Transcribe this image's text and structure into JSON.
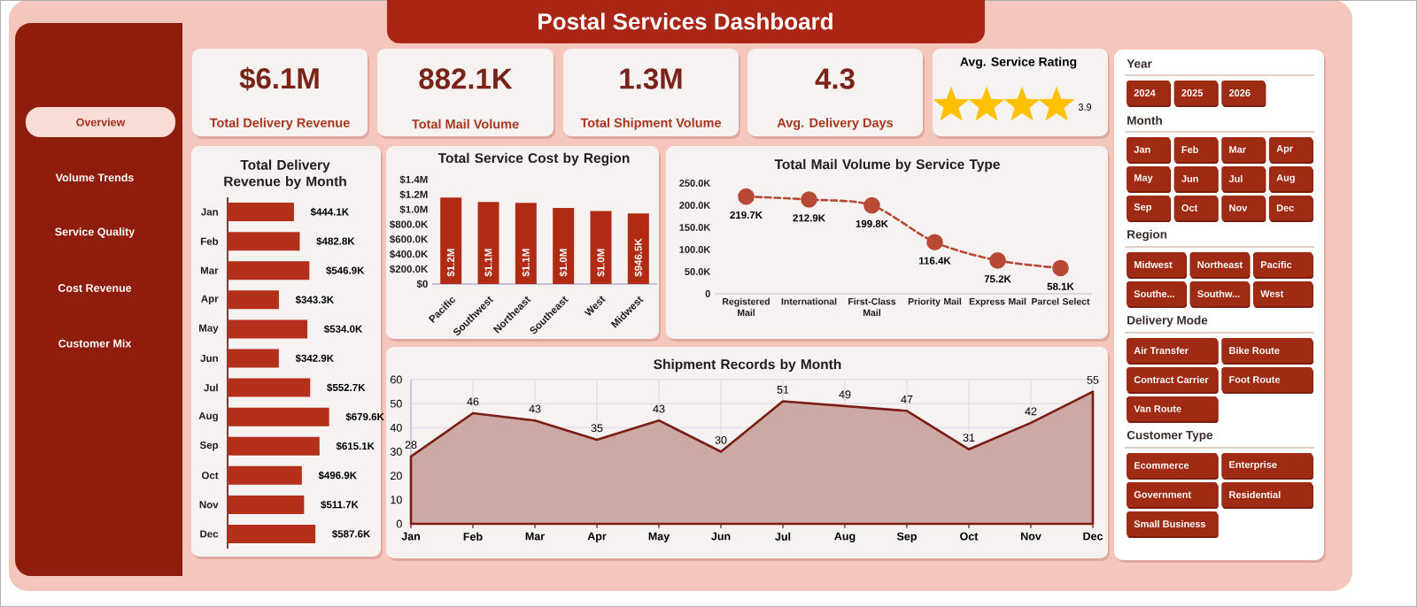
{
  "chart_data": [
    {
      "type": "other",
      "title": "Postal Services Dashboard",
      "annotations": [
        "Overview",
        "Volume Trends",
        "Service Quality",
        "Cost Revenue",
        "Customer Mix"
      ]
    },
    {
      "type": "other",
      "title": "Total Delivery Revenue",
      "annotations": [
        "$6.1M"
      ]
    },
    {
      "type": "other",
      "title": "Total Mail Volume",
      "annotations": [
        "882.1K"
      ]
    },
    {
      "type": "other",
      "title": "Total Shipment Volume",
      "annotations": [
        "1.3M"
      ]
    },
    {
      "type": "other",
      "title": "Avg. Delivery Days",
      "annotations": [
        "4.3"
      ]
    },
    {
      "type": "other",
      "title": "Avg. Service Rating",
      "annotations": [
        "3.9"
      ]
    },
    {
      "type": "bar",
      "orientation": "horizontal",
      "title": "Total Delivery Revenue by Month",
      "categories": [
        "Jan",
        "Feb",
        "Mar",
        "Apr",
        "May",
        "Jun",
        "Jul",
        "Aug",
        "Sep",
        "Oct",
        "Nov",
        "Dec"
      ],
      "values": [
        444.1,
        482.8,
        546.9,
        343.3,
        534.0,
        342.9,
        552.7,
        679.6,
        615.1,
        496.9,
        511.7,
        587.6
      ],
      "value_labels": [
        "$444.1K",
        "$482.8K",
        "$546.9K",
        "$343.3K",
        "$534.0K",
        "$342.9K",
        "$552.7K",
        "$679.6K",
        "$615.1K",
        "$496.9K",
        "$511.7K",
        "$587.6K"
      ],
      "color": "#b3301a"
    },
    {
      "type": "bar",
      "title": "Total Service Cost by Region",
      "categories": [
        "Pacific",
        "Southwest",
        "Northeast",
        "Southeast",
        "West",
        "Midwest"
      ],
      "values": [
        1160000,
        1100000,
        1090000,
        1020000,
        980000,
        946500
      ],
      "value_labels": [
        "$1.2M",
        "$1.1M",
        "$1.1M",
        "$1.0M",
        "$1.0M",
        "$946.5K"
      ],
      "color": "#b02a14",
      "ylim": [
        0,
        1400000
      ],
      "yticks": [
        {
          "value": 0,
          "label": "$0"
        },
        {
          "value": 200000,
          "label": "$200.0K"
        },
        {
          "value": 400000,
          "label": "$400.0K"
        },
        {
          "value": 600000,
          "label": "$600.0K"
        },
        {
          "value": 800000,
          "label": "$800.0K"
        },
        {
          "value": 1000000,
          "label": "$1.0M"
        },
        {
          "value": 1200000,
          "label": "$1.2M"
        },
        {
          "value": 1400000,
          "label": "$1.4M"
        }
      ]
    },
    {
      "type": "line",
      "title": "Total Mail Volume by Service Type",
      "categories": [
        "Registered Mail",
        "International",
        "First-Class Mail",
        "Priority Mail",
        "Express Mail",
        "Parcel Select"
      ],
      "values": [
        219700,
        212900,
        199800,
        116400,
        75200,
        58100
      ],
      "value_labels": [
        "219.7K",
        "212.9K",
        "199.8K",
        "116.4K",
        "75.2K",
        "58.1K"
      ],
      "color": "#b84a35",
      "line_style": "dashed",
      "marker": "circle",
      "ylim": [
        0,
        250000
      ],
      "yticks": [
        0,
        {
          "value": 50000,
          "label": "50.0K"
        },
        {
          "value": 100000,
          "label": "100.0K"
        },
        {
          "value": 150000,
          "label": "150.0K"
        },
        {
          "value": 200000,
          "label": "200.0K"
        },
        {
          "value": 250000,
          "label": "250.0K"
        }
      ]
    },
    {
      "type": "area",
      "title": "Shipment Records by Month",
      "categories": [
        "Jan",
        "Feb",
        "Mar",
        "Apr",
        "May",
        "Jun",
        "Jul",
        "Aug",
        "Sep",
        "Oct",
        "Nov",
        "Dec"
      ],
      "values": [
        28,
        46,
        43,
        35,
        43,
        30,
        51,
        49,
        47,
        31,
        42,
        55
      ],
      "color": "#7b1d12",
      "ylim": [
        0,
        60
      ],
      "yticks": [
        0,
        10,
        20,
        30,
        40,
        50,
        60
      ],
      "grid": true,
      "data_labels": true
    },
    {
      "type": "other",
      "title": "Year",
      "annotations": [
        "2024",
        "2025",
        "2026"
      ]
    },
    {
      "type": "other",
      "title": "Month",
      "annotations": [
        "Jan",
        "Feb",
        "Mar",
        "Apr",
        "May",
        "Jun",
        "Jul",
        "Aug",
        "Sep",
        "Oct",
        "Nov",
        "Dec"
      ]
    },
    {
      "type": "other",
      "title": "Region",
      "annotations": [
        "Midwest",
        "Northeast",
        "Pacific",
        "Southe...",
        "Southw...",
        "West"
      ]
    },
    {
      "type": "other",
      "title": "Delivery Mode",
      "annotations": [
        "Air Transfer",
        "Bike Route",
        "Contract Carrier",
        "Foot Route",
        "Van Route"
      ]
    },
    {
      "type": "other",
      "title": "Customer Type",
      "annotations": [
        "Ecommerce",
        "Enterprise",
        "Government",
        "Residential",
        "Small Business"
      ]
    }
  ]
}
